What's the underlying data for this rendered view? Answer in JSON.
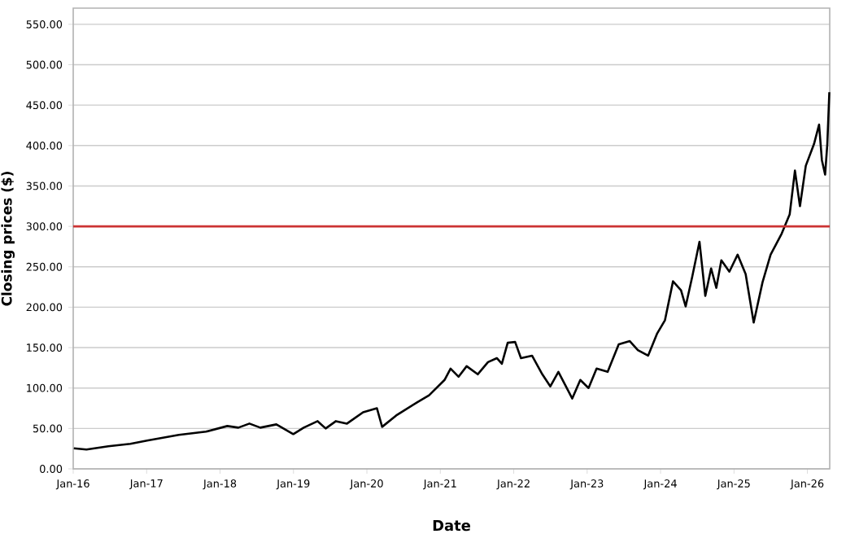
{
  "chart_data": {
    "type": "line",
    "xlabel": "Date",
    "ylabel": "Closing prices ($)",
    "x": [
      "2016-01-04",
      "2016-03-07",
      "2016-06-24",
      "2016-10-12",
      "2017-01-03",
      "2017-06-10",
      "2017-10-23",
      "2018-02-06",
      "2018-04-02",
      "2018-05-27",
      "2018-07-20",
      "2018-10-08",
      "2018-12-31",
      "2019-02-21",
      "2019-05-01",
      "2019-06-10",
      "2019-07-31",
      "2019-09-24",
      "2019-12-13",
      "2020-02-20",
      "2020-03-17",
      "2020-05-26",
      "2020-09-12",
      "2020-11-06",
      "2021-01-22",
      "2021-02-21",
      "2021-04-02",
      "2021-05-12",
      "2021-07-06",
      "2021-08-26",
      "2021-10-09",
      "2021-11-03",
      "2021-12-02",
      "2022-01-08",
      "2022-02-06",
      "2022-04-02",
      "2022-05-23",
      "2022-07-02",
      "2022-08-11",
      "2022-10-19",
      "2022-11-28",
      "2023-01-08",
      "2023-02-17",
      "2023-04-13",
      "2023-06-07",
      "2023-08-01",
      "2023-09-10",
      "2023-10-31",
      "2023-12-14",
      "2024-01-23",
      "2024-03-03",
      "2024-04-12",
      "2024-05-05",
      "2024-06-07",
      "2024-07-13",
      "2024-08-11",
      "2024-09-09",
      "2024-10-05",
      "2024-10-30",
      "2024-12-09",
      "2025-01-19",
      "2025-02-28",
      "2025-04-09",
      "2025-05-23",
      "2025-07-02",
      "2025-08-26",
      "2025-10-05",
      "2025-10-31",
      "2025-11-25",
      "2025-12-24",
      "2026-02-03",
      "2026-02-28",
      "2026-03-14",
      "2026-03-30",
      "2026-04-10",
      "2026-04-20"
    ],
    "series": [
      {
        "color": "#000000",
        "values": [
          25.5,
          24,
          28,
          31,
          35,
          42,
          46,
          53,
          51,
          56,
          51,
          55,
          43,
          51,
          59,
          50,
          59,
          56,
          70,
          75,
          52,
          66,
          83,
          91,
          110,
          124,
          114,
          127,
          117,
          132,
          137,
          130,
          156,
          157,
          137,
          140,
          117,
          102,
          120,
          87,
          110,
          100,
          124,
          120,
          154,
          158,
          147,
          140,
          167,
          184,
          232,
          221,
          201,
          238,
          281,
          214,
          248,
          224,
          258,
          244,
          265,
          241,
          181,
          231,
          265,
          291,
          315,
          369,
          325,
          375,
          402,
          426,
          382,
          364,
          402,
          466
        ]
      }
    ],
    "xlim": [
      "2016-01-01",
      "2026-04-22"
    ],
    "ylim": [
      0,
      570
    ],
    "xticks": [
      {
        "value": "2016-01",
        "label": "Jan-16"
      },
      {
        "value": "2017-01",
        "label": "Jan-17"
      },
      {
        "value": "2018-01",
        "label": "Jan-18"
      },
      {
        "value": "2019-01",
        "label": "Jan-19"
      },
      {
        "value": "2020-01",
        "label": "Jan-20"
      },
      {
        "value": "2021-01",
        "label": "Jan-21"
      },
      {
        "value": "2022-01",
        "label": "Jan-22"
      },
      {
        "value": "2023-01",
        "label": "Jan-23"
      },
      {
        "value": "2024-01",
        "label": "Jan-24"
      },
      {
        "value": "2025-01",
        "label": "Jan-25"
      },
      {
        "value": "2026-01",
        "label": "Jan-26"
      }
    ],
    "yticks": [
      {
        "value": 0,
        "label": "0.00"
      },
      {
        "value": 50,
        "label": "50.00"
      },
      {
        "value": 100,
        "label": "100.00"
      },
      {
        "value": 150,
        "label": "150.00"
      },
      {
        "value": 200,
        "label": "200.00"
      },
      {
        "value": 250,
        "label": "250.00"
      },
      {
        "value": 300,
        "label": "300.00"
      },
      {
        "value": 350,
        "label": "350.00"
      },
      {
        "value": 400,
        "label": "400.00"
      },
      {
        "value": 450,
        "label": "450.00"
      },
      {
        "value": 500,
        "label": "500.00"
      },
      {
        "value": 550,
        "label": "550.00"
      }
    ],
    "ref_lines": [
      {
        "axis": "y",
        "value": 300,
        "color": "#cc3333"
      }
    ],
    "grid": "y",
    "marker": "none",
    "line_style": "solid"
  }
}
